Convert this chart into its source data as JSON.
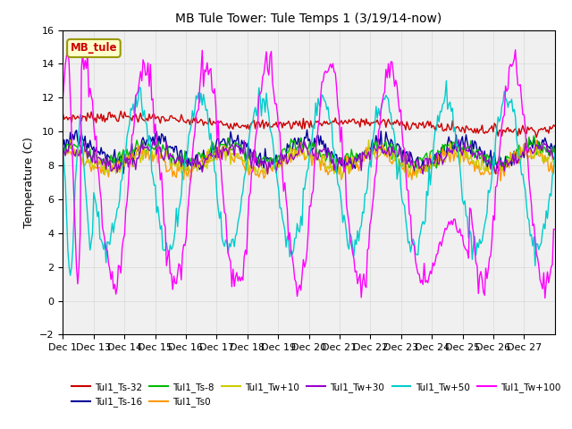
{
  "title": "MB Tule Tower: Tule Temps 1 (3/19/14-now)",
  "ylabel": "Temperature (C)",
  "ylim": [
    -2,
    16
  ],
  "yticks": [
    -2,
    0,
    2,
    4,
    6,
    8,
    10,
    12,
    14,
    16
  ],
  "x_tick_labels": [
    "Dec 1",
    "Dec 13",
    "Dec 14",
    "Dec 15",
    "Dec 16",
    "Dec 17",
    "Dec 18",
    "Dec 19",
    "Dec 20",
    "Dec 21",
    "Dec 22",
    "Dec 23",
    "Dec 24",
    "Dec 25",
    "Dec 26",
    "Dec 27"
  ],
  "series_colors": {
    "Tul1_Ts-32": "#cc0000",
    "Tul1_Ts-16": "#000099",
    "Tul1_Ts-8": "#00bb00",
    "Tul1_Ts0": "#ff9900",
    "Tul1_Tw+10": "#cccc00",
    "Tul1_Tw+30": "#9900cc",
    "Tul1_Tw+50": "#00cccc",
    "Tul1_Tw+100": "#ff00ff"
  },
  "legend_label": "MB_tule",
  "background_color": "#ffffff",
  "plot_bg_color": "#f0f0f0",
  "grid_color": "#d8d8d8"
}
